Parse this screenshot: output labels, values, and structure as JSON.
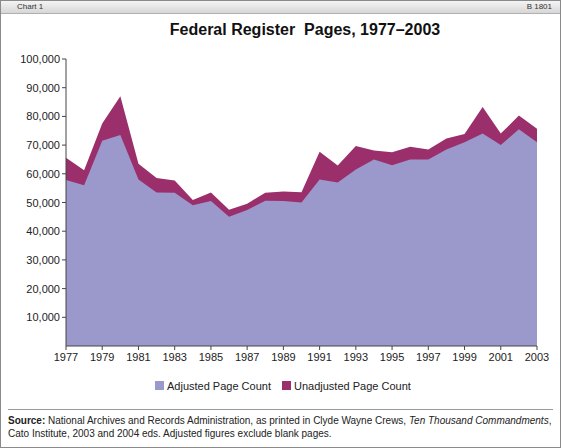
{
  "header": [
    "Chart 1",
    "B 1801"
  ],
  "source": [
    "Source:",
    " National Archives and Records Administration, as printed in Clyde Wayne Crews, ",
    "Ten Thousand Commandments",
    ", Cato Institute, 2003 and 2004 eds. Adjusted figures exclude blank pages."
  ],
  "chart_data": {
    "type": "area",
    "title": "Federal Register  Pages, 1977–2003",
    "x": [
      1977,
      1978,
      1979,
      1980,
      1981,
      1982,
      1983,
      1984,
      1985,
      1986,
      1987,
      1988,
      1989,
      1990,
      1991,
      1992,
      1993,
      1994,
      1995,
      1996,
      1997,
      1998,
      1999,
      2000,
      2001,
      2002,
      2003
    ],
    "series": [
      {
        "name": "Adjusted Page Count",
        "color": "#9b99cc",
        "values": [
          57800,
          56000,
          71500,
          73500,
          58000,
          53500,
          53400,
          49000,
          50500,
          45000,
          47400,
          50600,
          50500,
          50000,
          58000,
          57000,
          61500,
          65000,
          63000,
          65000,
          65000,
          68500,
          71000,
          74000,
          70000,
          75500,
          71000
        ]
      },
      {
        "name": "Unadjusted Page Count",
        "color": "#9b2f6b",
        "values": [
          65600,
          61200,
          77500,
          87000,
          63500,
          58500,
          57700,
          50900,
          53500,
          47500,
          49600,
          53400,
          53800,
          53600,
          67700,
          62900,
          69700,
          68100,
          67500,
          69400,
          68500,
          72300,
          73900,
          83300,
          74000,
          80300,
          75700
        ]
      }
    ],
    "stacked": false,
    "xlim": [
      1977,
      2003
    ],
    "xticks": [
      1977,
      1979,
      1981,
      1983,
      1985,
      1987,
      1989,
      1991,
      1993,
      1995,
      1997,
      1999,
      2001,
      2003
    ],
    "ylim": [
      0,
      100000
    ],
    "yticks": [
      {
        "value": 10000,
        "label": "10,000"
      },
      {
        "value": 20000,
        "label": "20,000"
      },
      {
        "value": 30000,
        "label": "30,000"
      },
      {
        "value": 40000,
        "label": "40,000"
      },
      {
        "value": 50000,
        "label": "50,000"
      },
      {
        "value": 60000,
        "label": "60,000"
      },
      {
        "value": 70000,
        "label": "70,000"
      },
      {
        "value": 80000,
        "label": "80,000"
      },
      {
        "value": 90000,
        "label": "90,000"
      },
      {
        "value": 100000,
        "label": "100,000"
      }
    ],
    "grid": false,
    "legend": "bottom"
  }
}
